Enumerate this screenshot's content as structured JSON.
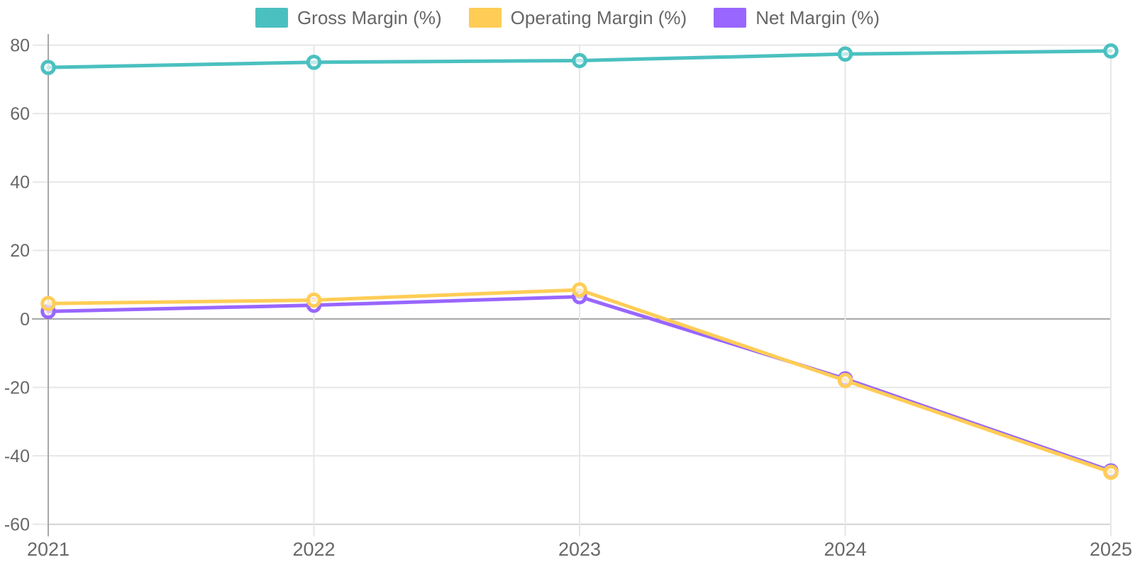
{
  "chart_data": {
    "type": "line",
    "title": "",
    "xlabel": "",
    "ylabel": "",
    "categories": [
      "2021",
      "2022",
      "2023",
      "2024",
      "2025"
    ],
    "series": [
      {
        "name": "Gross Margin (%)",
        "color": "#4BC0C0",
        "values": [
          73.5,
          75.0,
          75.5,
          77.4,
          78.3
        ]
      },
      {
        "name": "Operating Margin (%)",
        "color": "#FFCD56",
        "values": [
          4.5,
          5.5,
          8.5,
          -18.0,
          -44.8
        ]
      },
      {
        "name": "Net Margin (%)",
        "color": "#9966FF",
        "values": [
          2.2,
          4.0,
          6.5,
          -17.5,
          -44.4
        ]
      }
    ],
    "y_ticks": [
      80,
      60,
      40,
      20,
      0,
      -20,
      -40,
      -60
    ],
    "ylim": [
      -60,
      80
    ],
    "grid": true,
    "legend_position": "top",
    "point_style": "circle",
    "draw_order": "first-series-on-top"
  },
  "styles": {
    "background": "#FFFFFF",
    "axis_line_color": "#A8A8A8",
    "zero_line_color": "#A8A8A8",
    "grid_line_color": "#E7E7E7",
    "bottom_line_color": "#D2D2D2",
    "tick_label_color": "#686868",
    "legend_text_color": "#666666",
    "point_fill": "rgba(255,255,255,0.65)"
  }
}
